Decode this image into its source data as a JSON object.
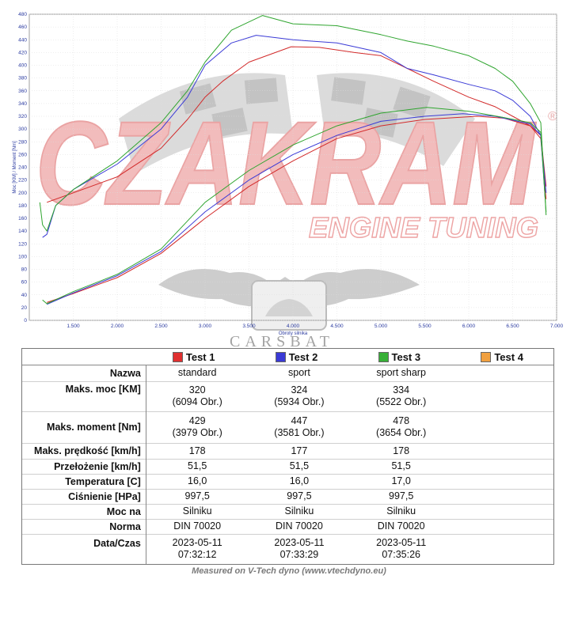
{
  "watermark": {
    "brand": "CZAKRAM",
    "tagline": "ENGINE TUNING",
    "registered": "®",
    "sub": "CARSBAT"
  },
  "chart_data": {
    "type": "line",
    "xlabel": "Obroty silnika",
    "ylabel": "Moc [KM] / Moment [Nm]",
    "xlim": [
      1000,
      7000
    ],
    "ylim": [
      0,
      480
    ],
    "xticks": [
      1500,
      2000,
      2500,
      3000,
      3500,
      4000,
      4500,
      5000,
      5500,
      6000,
      6500,
      7000
    ],
    "xtick_labels": [
      "1.500",
      "2.000",
      "2.500",
      "3.000",
      "3.500",
      "4.000",
      "4.500",
      "5.000",
      "5.500",
      "6.000",
      "6.500",
      "7.000"
    ],
    "yticks": [
      0,
      20,
      40,
      60,
      80,
      100,
      120,
      140,
      160,
      180,
      200,
      220,
      240,
      260,
      280,
      300,
      320,
      340,
      360,
      380,
      400,
      420,
      440,
      460,
      480
    ],
    "grid": true,
    "series": [
      {
        "name": "Test 1",
        "color": "#d22a2a",
        "kind": "moment",
        "x": [
          1200,
          1500,
          2000,
          2500,
          2800,
          3000,
          3200,
          3500,
          3979,
          4300,
          4700,
          5000,
          5300,
          5600,
          6000,
          6300,
          6500,
          6700,
          6820,
          6880
        ],
        "y": [
          185,
          200,
          225,
          270,
          315,
          350,
          375,
          405,
          429,
          428,
          420,
          415,
          395,
          375,
          350,
          335,
          320,
          305,
          285,
          190
        ]
      },
      {
        "name": "Test 1",
        "color": "#d22a2a",
        "kind": "power",
        "x": [
          1200,
          1500,
          2000,
          2500,
          3000,
          3500,
          4000,
          4500,
          5000,
          5500,
          6094,
          6400,
          6700,
          6820,
          6880
        ],
        "y": [
          28,
          42,
          67,
          105,
          160,
          210,
          250,
          285,
          305,
          315,
          320,
          317,
          305,
          290,
          210
        ]
      },
      {
        "name": "Test 2",
        "color": "#3a3ad6",
        "kind": "moment",
        "x": [
          1150,
          1200,
          1300,
          1500,
          2000,
          2500,
          2800,
          3000,
          3300,
          3581,
          4000,
          4500,
          5000,
          5300,
          5600,
          6000,
          6300,
          6500,
          6700,
          6820,
          6870
        ],
        "y": [
          130,
          135,
          180,
          205,
          245,
          300,
          350,
          400,
          435,
          447,
          440,
          435,
          420,
          395,
          385,
          370,
          360,
          345,
          320,
          290,
          190
        ]
      },
      {
        "name": "Test 2",
        "color": "#3a3ad6",
        "kind": "power",
        "x": [
          1200,
          1500,
          2000,
          2500,
          3000,
          3500,
          4000,
          4500,
          5000,
          5500,
          5934,
          6300,
          6700,
          6820,
          6880
        ],
        "y": [
          25,
          43,
          70,
          108,
          170,
          220,
          260,
          290,
          312,
          320,
          324,
          320,
          308,
          290,
          200
        ]
      },
      {
        "name": "Test 3",
        "color": "#2fa52f",
        "kind": "moment",
        "x": [
          1120,
          1150,
          1200,
          1300,
          1500,
          2000,
          2500,
          2800,
          3000,
          3300,
          3654,
          4000,
          4500,
          5000,
          5300,
          5600,
          6000,
          6300,
          6500,
          6700,
          6820,
          6880
        ],
        "y": [
          185,
          150,
          140,
          180,
          205,
          250,
          310,
          360,
          405,
          455,
          478,
          465,
          462,
          448,
          438,
          430,
          415,
          395,
          375,
          340,
          310,
          165
        ]
      },
      {
        "name": "Test 3",
        "color": "#2fa52f",
        "kind": "power",
        "x": [
          1150,
          1200,
          1500,
          2000,
          2500,
          3000,
          3500,
          4000,
          4500,
          5000,
          5522,
          6000,
          6400,
          6700,
          6820,
          6880
        ],
        "y": [
          32,
          26,
          45,
          72,
          112,
          185,
          235,
          275,
          305,
          325,
          334,
          328,
          318,
          310,
          295,
          170
        ]
      }
    ]
  },
  "results": {
    "tests": [
      {
        "label": "Test 1",
        "color": "#e03030"
      },
      {
        "label": "Test 2",
        "color": "#3a3ad6"
      },
      {
        "label": "Test 3",
        "color": "#38b038"
      },
      {
        "label": "Test 4",
        "color": "#f0a040"
      }
    ],
    "rows": [
      {
        "label": "Nazwa",
        "values": [
          "standard",
          "sport",
          "sport sharp",
          ""
        ]
      },
      {
        "label": "Maks. moc [KM]",
        "values": [
          "320",
          "324",
          "334",
          ""
        ],
        "sub": [
          "(6094 Obr.)",
          "(5934 Obr.)",
          "(5522 Obr.)",
          ""
        ]
      },
      {
        "label": "Maks. moment [Nm]",
        "values": [
          "429",
          "447",
          "478",
          ""
        ],
        "sub": [
          "(3979 Obr.)",
          "(3581 Obr.)",
          "(3654 Obr.)",
          ""
        ]
      },
      {
        "label": "Maks. prędkość [km/h]",
        "values": [
          "178",
          "177",
          "178",
          ""
        ]
      },
      {
        "label": "Przełożenie [km/h]",
        "values": [
          "51,5",
          "51,5",
          "51,5",
          ""
        ]
      },
      {
        "label": "Temperatura [C]",
        "values": [
          "16,0",
          "16,0",
          "17,0",
          ""
        ]
      },
      {
        "label": "Ciśnienie [HPa]",
        "values": [
          "997,5",
          "997,5",
          "997,5",
          ""
        ]
      },
      {
        "label": "Moc na",
        "values": [
          "Silniku",
          "Silniku",
          "Silniku",
          ""
        ]
      },
      {
        "label": "Norma",
        "values": [
          "DIN 70020",
          "DIN 70020",
          "DIN 70020",
          ""
        ]
      },
      {
        "label": "Data/Czas",
        "values": [
          "2023-05-11",
          "2023-05-11",
          "2023-05-11",
          ""
        ],
        "sub": [
          "07:32:12",
          "07:33:29",
          "07:35:26",
          ""
        ]
      }
    ]
  },
  "footer": "Measured on V-Tech dyno (www.vtechdyno.eu)"
}
